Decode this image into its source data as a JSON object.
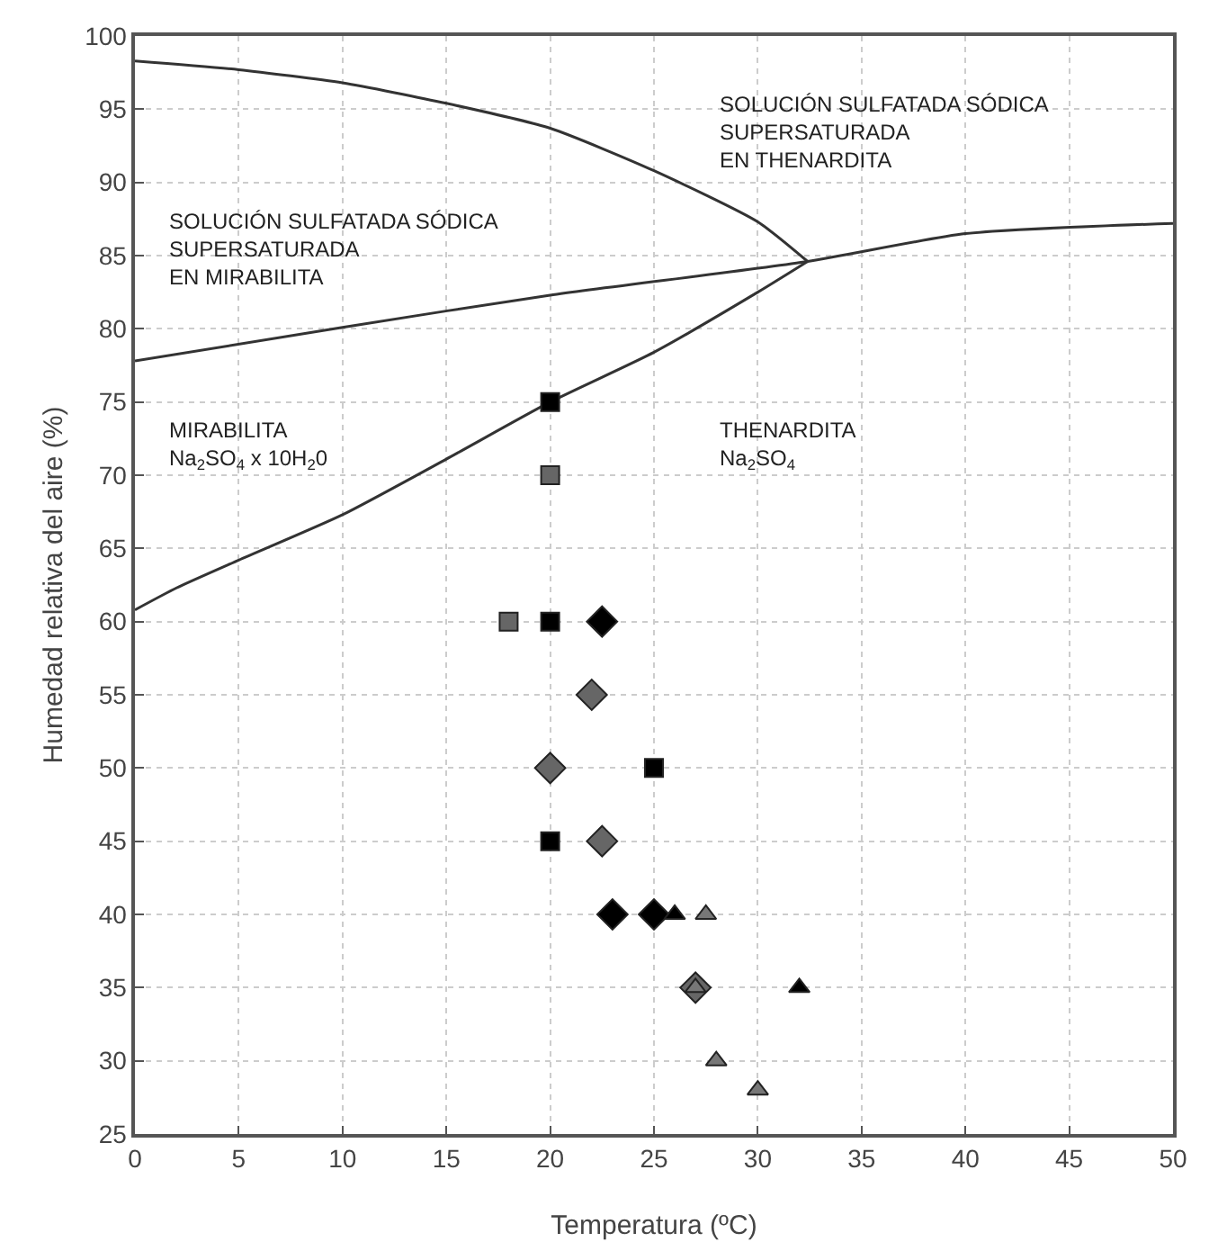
{
  "chart_data": {
    "type": "scatter",
    "xlabel": "Temperatura (ºC)",
    "ylabel": "Humedad relativa del aire (%)",
    "xlim": [
      0,
      50
    ],
    "ylim": [
      25,
      100
    ],
    "xticks": [
      0,
      5,
      10,
      15,
      20,
      25,
      30,
      35,
      40,
      45,
      50
    ],
    "yticks": [
      25,
      30,
      35,
      40,
      45,
      50,
      55,
      60,
      65,
      70,
      75,
      80,
      85,
      90,
      95,
      100
    ],
    "grid": true,
    "series": [
      {
        "type": "line",
        "marker": "none",
        "line_style": "solid",
        "color": "#333333",
        "x": [
          0,
          5,
          10,
          15,
          20,
          25,
          30,
          32.4
        ],
        "values": [
          98.3,
          97.7,
          96.8,
          95.4,
          93.7,
          90.8,
          87.3,
          84.6
        ]
      },
      {
        "type": "line",
        "marker": "none",
        "line_style": "solid",
        "color": "#333333",
        "x": [
          0,
          10,
          20,
          32.4,
          40,
          50
        ],
        "values": [
          77.8,
          80.1,
          82.3,
          84.6,
          86.5,
          87.2
        ]
      },
      {
        "type": "line",
        "marker": "none",
        "line_style": "solid",
        "color": "#333333",
        "x": [
          0,
          2,
          5,
          10,
          15,
          20,
          25,
          30,
          32.4
        ],
        "values": [
          60.8,
          62.3,
          64.2,
          67.3,
          71.1,
          75,
          78.4,
          82.5,
          84.6
        ]
      },
      {
        "type": "scatter",
        "marker": "square",
        "color": "#000000",
        "x": [
          20,
          20,
          25,
          20
        ],
        "values": [
          75,
          60,
          50,
          45
        ]
      },
      {
        "type": "scatter",
        "marker": "square",
        "color": "#666666",
        "x": [
          20,
          18
        ],
        "values": [
          70,
          60
        ]
      },
      {
        "type": "scatter",
        "marker": "diamond",
        "color": "#000000",
        "x": [
          22.5,
          23,
          25
        ],
        "values": [
          60,
          40,
          40
        ]
      },
      {
        "type": "scatter",
        "marker": "diamond",
        "color": "#666666",
        "x": [
          22,
          20,
          22.5,
          27
        ],
        "values": [
          55,
          50,
          45,
          35
        ]
      },
      {
        "type": "scatter",
        "marker": "triangle",
        "color": "#000000",
        "x": [
          26,
          32
        ],
        "values": [
          40,
          35
        ]
      },
      {
        "type": "scatter",
        "marker": "triangle",
        "color": "#777777",
        "x": [
          27.5,
          27,
          28,
          30
        ],
        "values": [
          40,
          35,
          30,
          28
        ]
      }
    ],
    "annotations": [
      "SOLUCIÓN SULFATADA SÓDICA\nSUPERSATURADA\nEN THENARDITA",
      "SOLUCIÓN SULFATADA SÓDICA\nSUPERSATURADA\nEN MIRABILITA",
      "MIRABILITA\nNa$_{2}$SO$_{4}$ x 10H$_{2}$0",
      "THENARDITA\nNa$_{2}$SO$_{4}$"
    ]
  }
}
